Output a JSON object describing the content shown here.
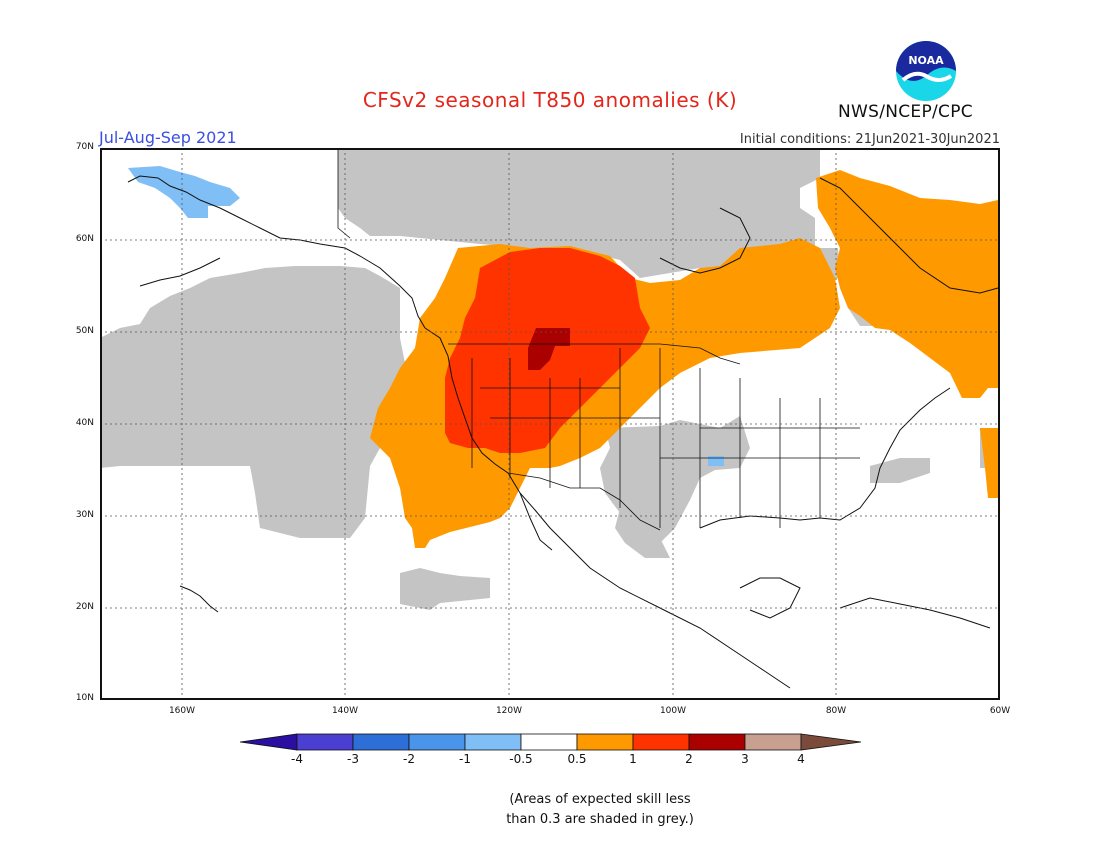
{
  "title": "CFSv2 seasonal T850 anomalies (K)",
  "season": "Jul-Aug-Sep 2021",
  "initial_conditions": "Initial conditions: 21Jun2021-30Jun2021",
  "agency": "NWS/NCEP/CPC",
  "logo": {
    "text": "NOAA",
    "icon": "noaa-logo-icon"
  },
  "map": {
    "lat_labels": [
      "70N",
      "60N",
      "50N",
      "40N",
      "30N",
      "20N",
      "10N"
    ],
    "lon_labels": [
      "160W",
      "140W",
      "120W",
      "100W",
      "80W",
      "60W"
    ],
    "extent": {
      "lon": [
        -170,
        -60
      ],
      "lat": [
        10,
        70
      ]
    },
    "grid": "dotted"
  },
  "colorbar": {
    "labels": [
      "-4",
      "-3",
      "-2",
      "-1",
      "-0.5",
      "0.5",
      "1",
      "2",
      "3",
      "4"
    ],
    "colors": [
      "#2a0fa0",
      "#4a3fd0",
      "#2d6fd6",
      "#4a95ea",
      "#80bff5",
      "#ffffff",
      "#ff9900",
      "#ff3300",
      "#aa0000",
      "#c8a090",
      "#7a4a3a"
    ]
  },
  "note": {
    "line1": "(Areas of expected skill less",
    "line2": "than 0.3 are shaded in grey.)"
  },
  "colors": {
    "grey": "#c4c4c4",
    "orange": "#ff9900",
    "red": "#ff3300",
    "darkred": "#aa0000",
    "lightblue": "#80bff5",
    "title": "#e3261b",
    "season": "#3a4fe0"
  }
}
